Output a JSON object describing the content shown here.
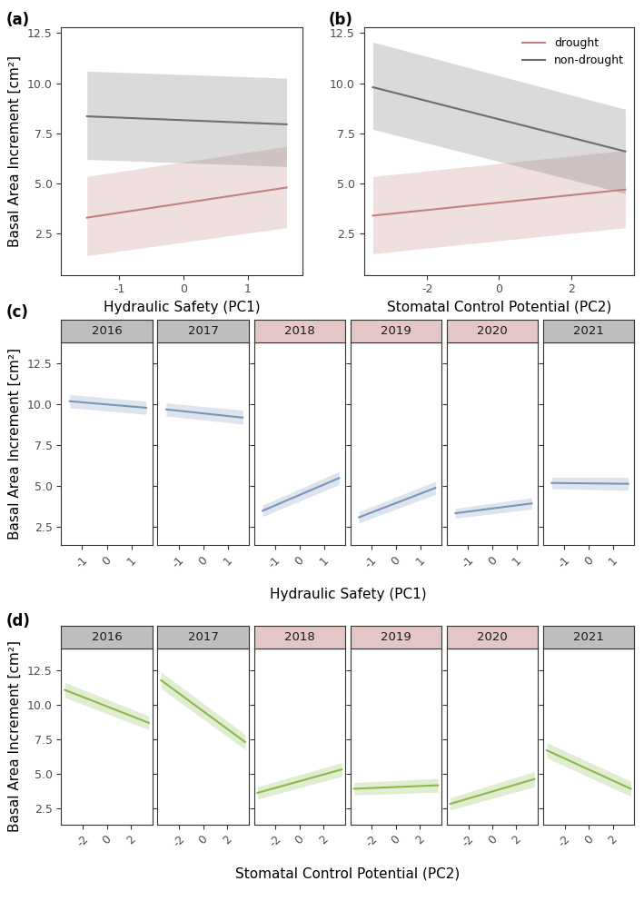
{
  "chart_data": [
    {
      "type": "line",
      "label": "(a)",
      "x_label": "Hydraulic Safety (PC1)",
      "y_label": "Basal Area Increment [cm²]",
      "xlim": [
        -1.9,
        1.85
      ],
      "xticks": [
        -1,
        0,
        1
      ],
      "ylim": [
        0.45,
        12.8
      ],
      "yticks": [
        {
          "value": 2.5,
          "label": "2.5"
        },
        {
          "value": 5,
          "label": "5.0"
        },
        {
          "value": 7.5,
          "label": "7.5"
        },
        {
          "value": 10,
          "label": "10.0"
        },
        {
          "value": 12.5,
          "label": "12.5"
        }
      ],
      "grid": false,
      "series": [
        {
          "name": "drought",
          "color": "#c48080",
          "x": [
            -1.5,
            1.6
          ],
          "values": [
            3.3,
            4.8
          ],
          "lower": [
            1.4,
            2.8
          ],
          "upper": [
            5.35,
            6.85
          ]
        },
        {
          "name": "non-drought",
          "color": "#6e6e6e",
          "x": [
            -1.5,
            1.6
          ],
          "values": [
            8.35,
            7.95
          ],
          "lower": [
            6.2,
            5.85
          ],
          "upper": [
            10.6,
            10.25
          ]
        }
      ]
    },
    {
      "type": "line",
      "label": "(b)",
      "x_label": "Stomatal Control Potential (PC2)",
      "xlim": [
        -3.75,
        3.75
      ],
      "xticks": [
        -2,
        0,
        2
      ],
      "ylim": [
        0.45,
        12.8
      ],
      "yticks": [
        {
          "value": 2.5,
          "label": "2.5"
        },
        {
          "value": 5,
          "label": "5.0"
        },
        {
          "value": 7.5,
          "label": "7.5"
        },
        {
          "value": 10,
          "label": "10.0"
        },
        {
          "value": 12.5,
          "label": "12.5"
        }
      ],
      "grid": false,
      "legend": "upper right",
      "series": [
        {
          "name": "drought",
          "color": "#c48080",
          "x": [
            -3.5,
            3.5
          ],
          "values": [
            3.4,
            4.7
          ],
          "lower": [
            1.5,
            2.8
          ],
          "upper": [
            5.35,
            6.65
          ]
        },
        {
          "name": "non-drought",
          "color": "#6e6e6e",
          "x": [
            -3.5,
            3.5
          ],
          "values": [
            9.8,
            6.6
          ],
          "lower": [
            7.7,
            4.5
          ],
          "upper": [
            12.05,
            8.7
          ]
        }
      ]
    },
    {
      "type": "line",
      "label": "(c)",
      "x_label": "Hydraulic Safety (PC1)",
      "y_label": "Basal Area Increment [cm²]",
      "xlim": [
        -1.85,
        1.85
      ],
      "xticks": [
        -1,
        0,
        1
      ],
      "ylim": [
        1.4,
        13.8
      ],
      "yticks": [
        {
          "value": 2.5,
          "label": "2.5"
        },
        {
          "value": 5,
          "label": "5.0"
        },
        {
          "value": 7.5,
          "label": "7.5"
        },
        {
          "value": 10,
          "label": "10.0"
        },
        {
          "value": 12.5,
          "label": "12.5"
        }
      ],
      "grid": false,
      "color": "#7895b8",
      "facets": [
        {
          "title": "2016",
          "condition": "non-drought",
          "x": [
            -1.5,
            1.6
          ],
          "values": [
            10.2,
            9.8
          ],
          "lower": [
            9.8,
            9.4
          ],
          "upper": [
            10.6,
            10.2
          ]
        },
        {
          "title": "2017",
          "condition": "non-drought",
          "x": [
            -1.5,
            1.6
          ],
          "values": [
            9.7,
            9.2
          ],
          "lower": [
            9.3,
            8.8
          ],
          "upper": [
            10.1,
            9.65
          ]
        },
        {
          "title": "2018",
          "condition": "drought",
          "x": [
            -1.5,
            1.6
          ],
          "values": [
            3.5,
            5.5
          ],
          "lower": [
            3.15,
            5.1
          ],
          "upper": [
            3.85,
            5.9
          ]
        },
        {
          "title": "2019",
          "condition": "drought",
          "x": [
            -1.5,
            1.6
          ],
          "values": [
            3.1,
            4.9
          ],
          "lower": [
            2.75,
            4.5
          ],
          "upper": [
            3.45,
            5.3
          ]
        },
        {
          "title": "2020",
          "condition": "drought",
          "x": [
            -1.5,
            1.6
          ],
          "values": [
            3.35,
            3.95
          ],
          "lower": [
            3.05,
            3.6
          ],
          "upper": [
            3.65,
            4.3
          ]
        },
        {
          "title": "2021",
          "condition": "non-drought",
          "x": [
            -1.5,
            1.6
          ],
          "values": [
            5.2,
            5.15
          ],
          "lower": [
            4.85,
            4.75
          ],
          "upper": [
            5.55,
            5.55
          ]
        }
      ]
    },
    {
      "type": "line",
      "label": "(d)",
      "x_label": "Stomatal Control Potential (PC2)",
      "y_label": "Basal Area Increment [cm²]",
      "xlim": [
        -3.8,
        3.8
      ],
      "xticks": [
        -2,
        0,
        2
      ],
      "ylim": [
        1.3,
        14.1
      ],
      "yticks": [
        {
          "value": 2.5,
          "label": "2.5"
        },
        {
          "value": 5,
          "label": "5.0"
        },
        {
          "value": 7.5,
          "label": "7.5"
        },
        {
          "value": 10,
          "label": "10.0"
        },
        {
          "value": 12.5,
          "label": "12.5"
        }
      ],
      "grid": false,
      "color": "#8ab84a",
      "facets": [
        {
          "title": "2016",
          "condition": "non-drought",
          "x": [
            -3.5,
            3.5
          ],
          "values": [
            11.1,
            8.7
          ],
          "lower": [
            10.55,
            8.2
          ],
          "upper": [
            11.65,
            9.2
          ]
        },
        {
          "title": "2017",
          "condition": "non-drought",
          "x": [
            -3.5,
            3.5
          ],
          "values": [
            11.8,
            7.3
          ],
          "lower": [
            11.2,
            6.75
          ],
          "upper": [
            12.4,
            7.85
          ]
        },
        {
          "title": "2018",
          "condition": "drought",
          "x": [
            -3.5,
            3.5
          ],
          "values": [
            3.6,
            5.3
          ],
          "lower": [
            3.15,
            4.8
          ],
          "upper": [
            4.05,
            5.8
          ]
        },
        {
          "title": "2019",
          "condition": "drought",
          "x": [
            -3.5,
            3.5
          ],
          "values": [
            3.9,
            4.15
          ],
          "lower": [
            3.45,
            3.65
          ],
          "upper": [
            4.35,
            4.65
          ]
        },
        {
          "title": "2020",
          "condition": "drought",
          "x": [
            -3.5,
            3.5
          ],
          "values": [
            2.8,
            4.6
          ],
          "lower": [
            2.35,
            4.05
          ],
          "upper": [
            3.25,
            5.15
          ]
        },
        {
          "title": "2021",
          "condition": "non-drought",
          "x": [
            -3.5,
            3.5
          ],
          "values": [
            6.7,
            3.9
          ],
          "lower": [
            6.15,
            3.35
          ],
          "upper": [
            7.25,
            4.45
          ]
        }
      ]
    }
  ]
}
